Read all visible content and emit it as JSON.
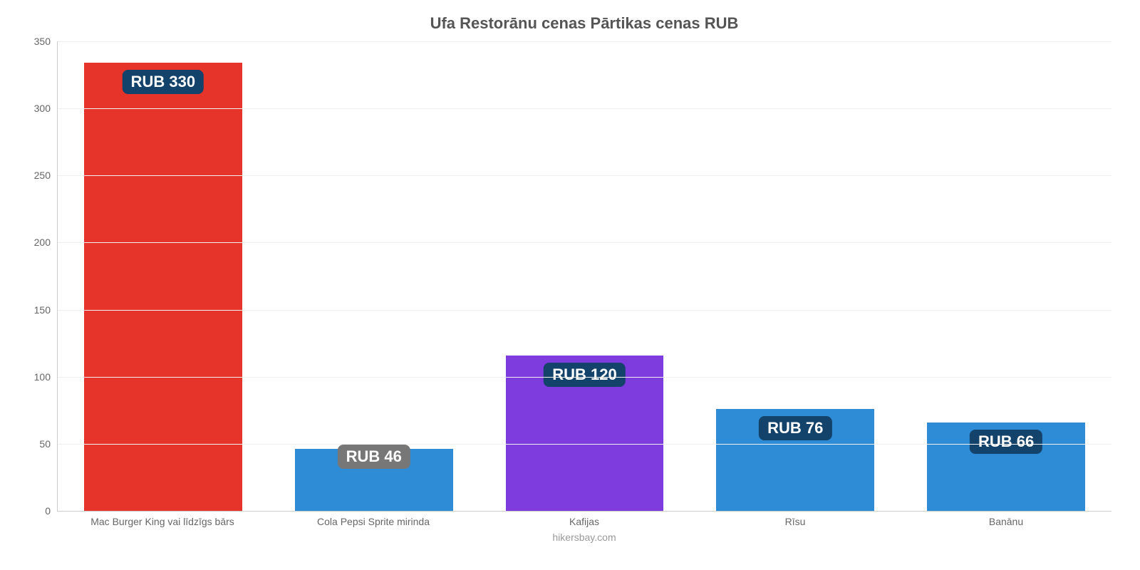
{
  "chart": {
    "type": "bar",
    "title": "Ufa Restorānu cenas Pārtikas cenas RUB",
    "title_fontsize": 22,
    "title_color": "#555555",
    "credit": "hikersbay.com",
    "credit_color": "#999999",
    "background_color": "#ffffff",
    "axis_color": "#cccccc",
    "grid_color": "#f0f0f0",
    "ylim": [
      0,
      350
    ],
    "yticks": [
      0,
      50,
      100,
      150,
      200,
      250,
      300,
      350
    ],
    "ytick_fontsize": 14,
    "ytick_color": "#666666",
    "xlabel_fontsize": 14,
    "xlabel_color": "#666666",
    "currency_prefix": "RUB ",
    "bar_width_pct": 75,
    "badge_bg": "#13426a",
    "badge_bg_above": "#777777",
    "badge_color": "#ffffff",
    "badge_fontsize": 22,
    "badge_radius": 8,
    "bars": [
      {
        "category": "Mac Burger King vai līdzīgs bārs",
        "value": 334,
        "label_value": 330,
        "color": "#e6342a",
        "badge_pos": "inside"
      },
      {
        "category": "Cola Pepsi Sprite mirinda",
        "value": 46,
        "label_value": 46,
        "color": "#2e8bd6",
        "badge_pos": "above"
      },
      {
        "category": "Kafijas",
        "value": 116,
        "label_value": 120,
        "color": "#7e3bdd",
        "badge_pos": "inside"
      },
      {
        "category": "Rīsu",
        "value": 76,
        "label_value": 76,
        "color": "#2e8bd6",
        "badge_pos": "inside"
      },
      {
        "category": "Banānu",
        "value": 66,
        "label_value": 66,
        "color": "#2e8bd6",
        "badge_pos": "inside"
      }
    ]
  }
}
